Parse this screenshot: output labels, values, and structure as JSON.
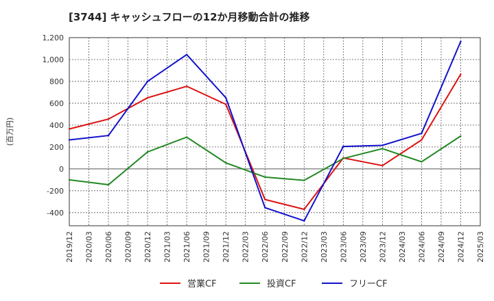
{
  "chart_data": {
    "type": "line",
    "title": "[3744]  キャッシュフローの12か月移動合計の推移",
    "ylabel": "(百万円)",
    "xlabel": "",
    "ylim": [
      -520,
      1200
    ],
    "yticks": [
      -400,
      -200,
      0,
      200,
      400,
      600,
      800,
      1000,
      1200
    ],
    "ytick_labels": [
      "-400",
      "-200",
      "0",
      "200",
      "400",
      "600",
      "800",
      "1,000",
      "1,200"
    ],
    "categories": [
      "2019/12",
      "2020/03",
      "2020/06",
      "2020/09",
      "2020/12",
      "2021/03",
      "2021/06",
      "2021/09",
      "2021/12",
      "2022/03",
      "2022/06",
      "2022/09",
      "2022/12",
      "2023/03",
      "2023/06",
      "2023/09",
      "2023/12",
      "2024/03",
      "2024/06",
      "2024/09",
      "2024/12",
      "2025/03"
    ],
    "grid": true,
    "legend_position": "bottom",
    "series": [
      {
        "name": "営業CF",
        "color": "#dd1111",
        "values": [
          365,
          null,
          455,
          null,
          650,
          null,
          755,
          null,
          590,
          null,
          -280,
          null,
          -370,
          null,
          100,
          null,
          30,
          null,
          265,
          null,
          865,
          null
        ]
      },
      {
        "name": "投資CF",
        "color": "#228822",
        "values": [
          -100,
          null,
          -145,
          null,
          155,
          null,
          290,
          null,
          55,
          null,
          -75,
          null,
          -105,
          null,
          95,
          null,
          185,
          null,
          65,
          null,
          300,
          null
        ]
      },
      {
        "name": "フリーCF",
        "color": "#1111cc",
        "values": [
          265,
          null,
          305,
          null,
          800,
          null,
          1045,
          null,
          650,
          null,
          -355,
          null,
          -475,
          null,
          205,
          null,
          215,
          null,
          325,
          null,
          1165,
          null
        ]
      }
    ]
  }
}
